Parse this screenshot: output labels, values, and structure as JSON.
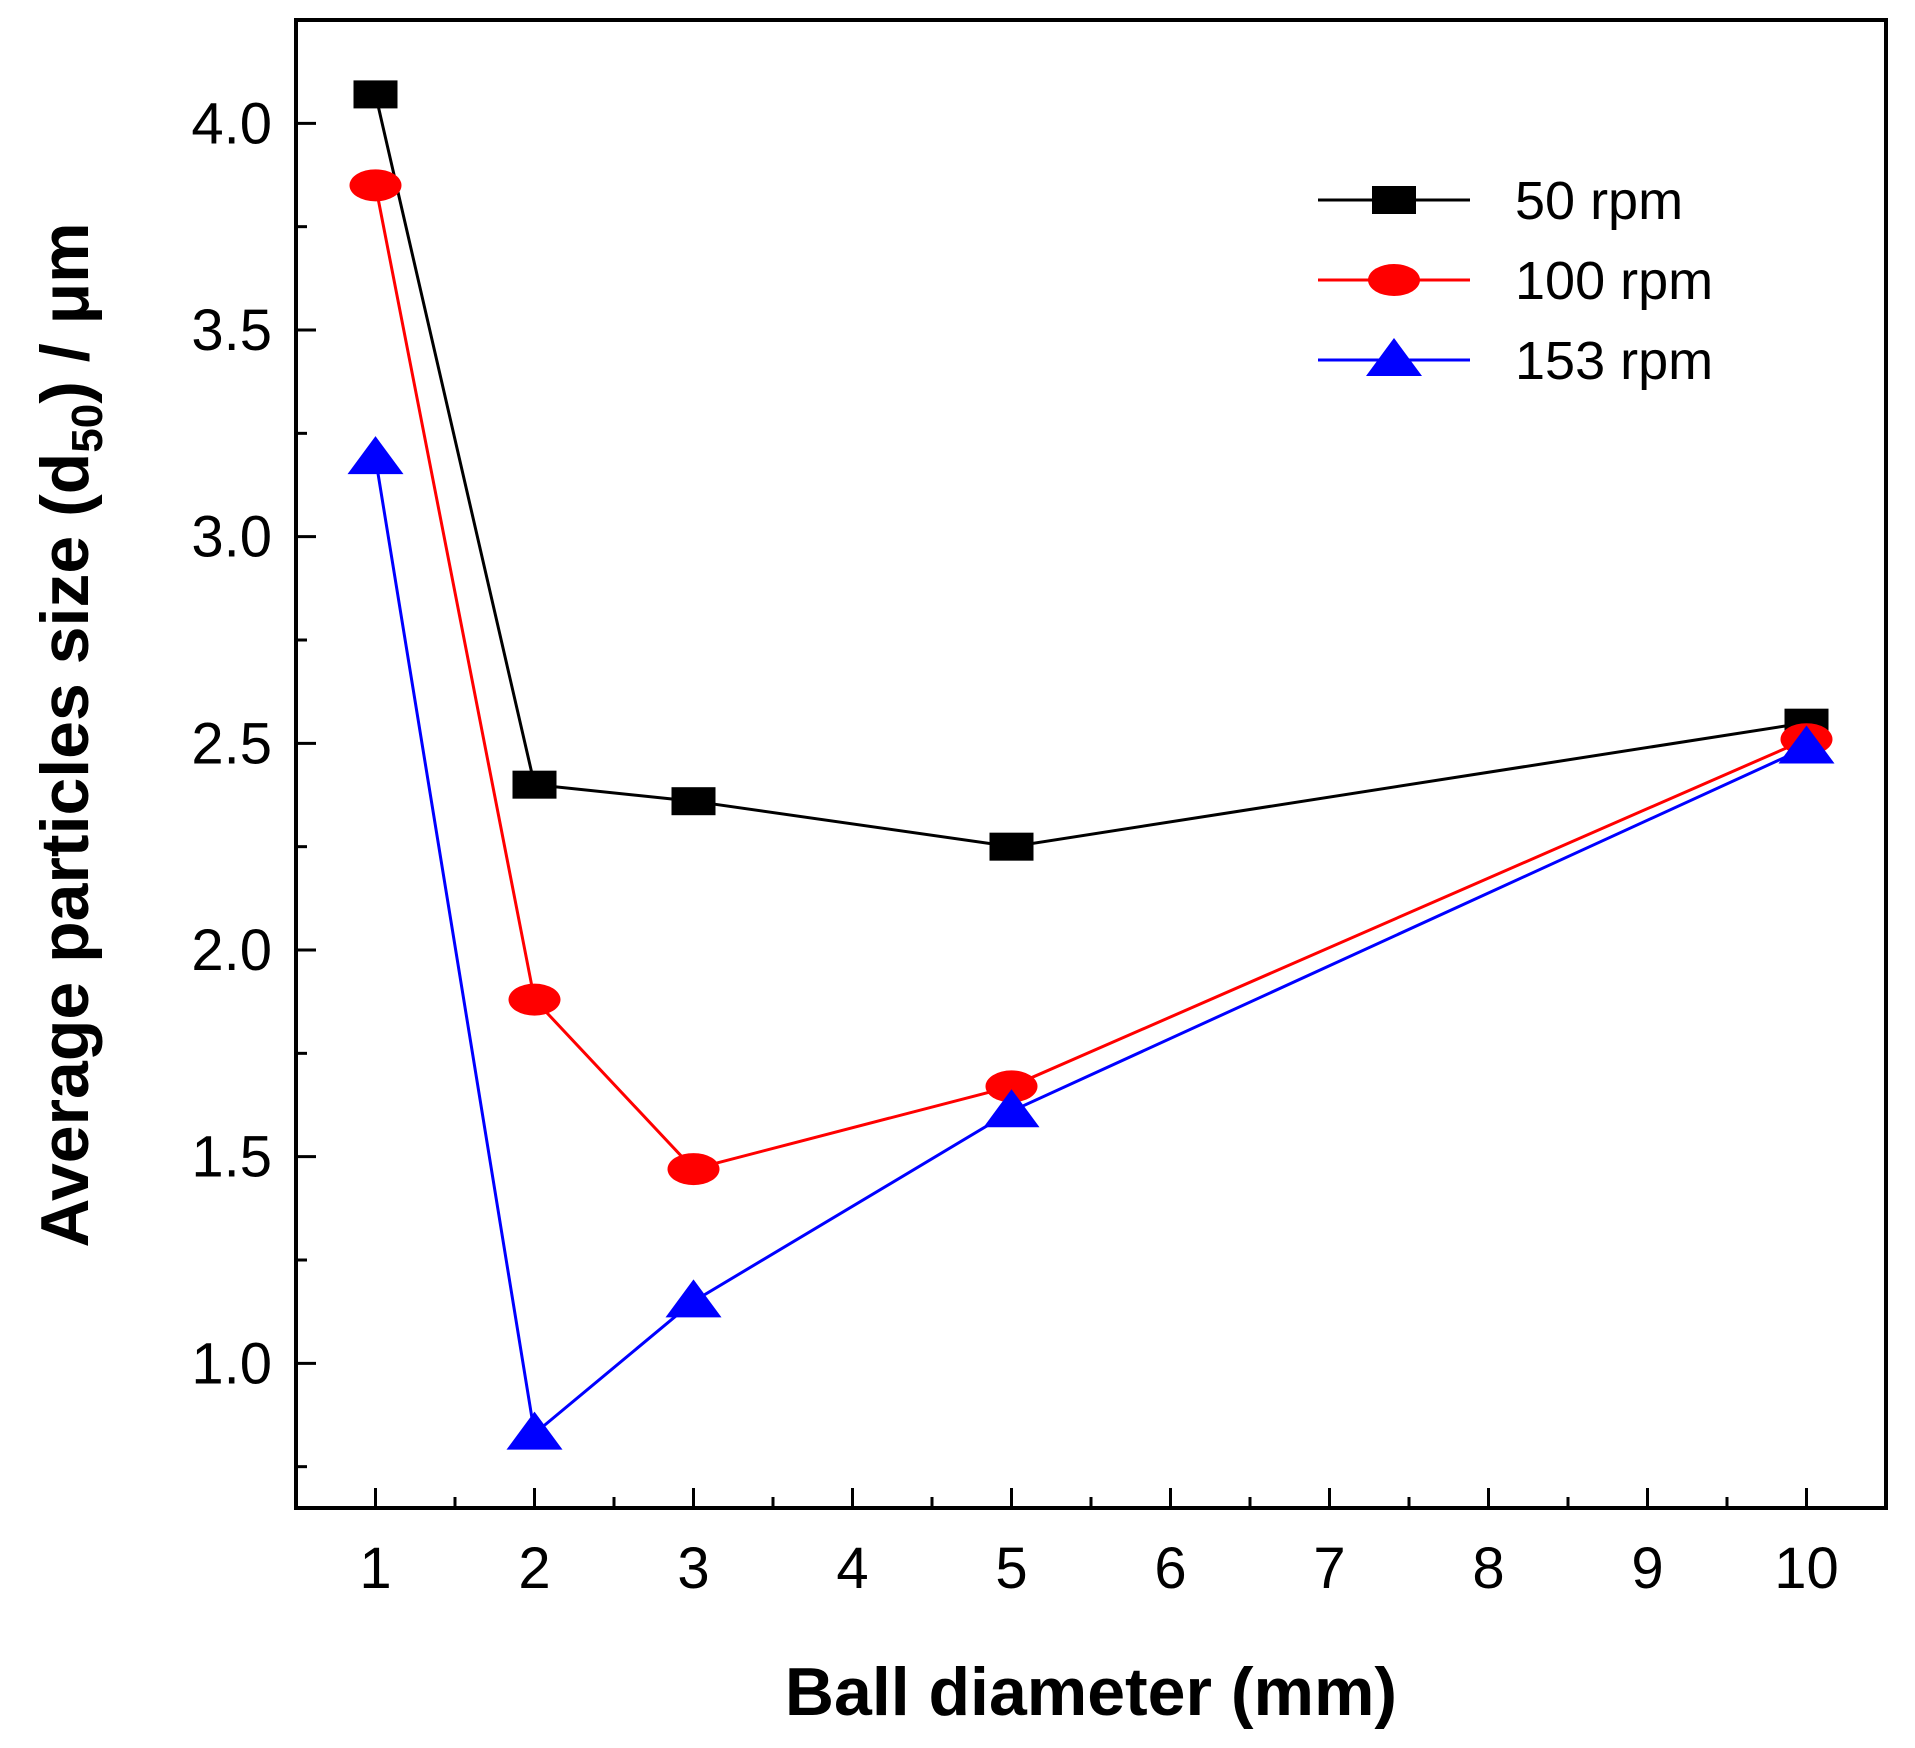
{
  "chart_data": {
    "type": "line",
    "title": "",
    "xlabel": "Ball diameter (mm)",
    "ylabel_main": "Average particles size (d",
    "ylabel_sub": "50",
    "ylabel_end": ") / μm",
    "xlim": [
      0.5,
      10.5
    ],
    "ylim": [
      0.65,
      4.25
    ],
    "x_ticks": [
      1,
      2,
      3,
      4,
      5,
      6,
      7,
      8,
      9,
      10
    ],
    "x_tick_labels": [
      "1",
      "2",
      "3",
      "4",
      "5",
      "6",
      "7",
      "8",
      "9",
      "10"
    ],
    "y_ticks": [
      1.0,
      1.5,
      2.0,
      2.5,
      3.0,
      3.5,
      4.0
    ],
    "y_tick_labels": [
      "1.0",
      "1.5",
      "2.0",
      "2.5",
      "3.0",
      "3.5",
      "4.0"
    ],
    "y_minor_ticks": [
      0.75,
      1.25,
      1.75,
      2.25,
      2.75,
      3.25,
      3.75
    ],
    "legend_position": "top-right",
    "x": [
      1,
      2,
      3,
      5,
      10
    ],
    "series": [
      {
        "name": "50 rpm",
        "color": "#000000",
        "marker": "square",
        "values": [
          4.07,
          2.4,
          2.36,
          2.25,
          2.55
        ]
      },
      {
        "name": "100 rpm",
        "color": "#ff0000",
        "marker": "circle",
        "values": [
          3.85,
          1.88,
          1.47,
          1.67,
          2.51
        ]
      },
      {
        "name": "153 rpm",
        "color": "#0000ff",
        "marker": "triangle",
        "values": [
          3.19,
          0.83,
          1.15,
          1.61,
          2.49
        ]
      }
    ]
  }
}
